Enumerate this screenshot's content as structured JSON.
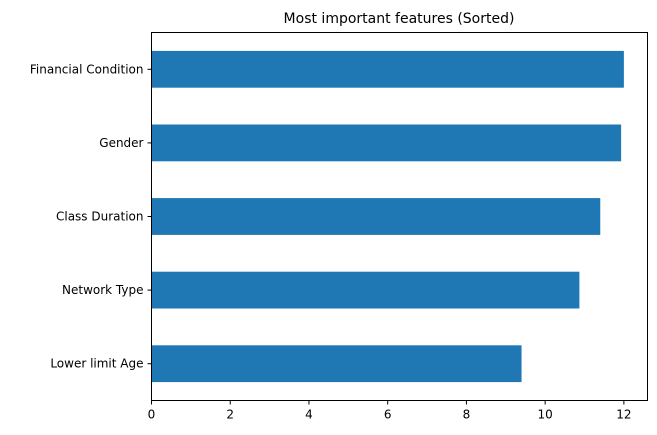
{
  "chart_data": {
    "type": "bar",
    "orientation": "horizontal",
    "title": "Most important features (Sorted)",
    "xlabel": "",
    "ylabel": "",
    "categories": [
      "Financial Condition",
      "Gender",
      "Class Duration",
      "Network Type",
      "Lower limit Age"
    ],
    "values": [
      12.0,
      11.93,
      11.4,
      10.87,
      9.4
    ],
    "xlim": [
      0,
      12.6
    ],
    "xticks": [
      "0",
      "2",
      "4",
      "6",
      "8",
      "10",
      "12"
    ],
    "grid": false,
    "legend": "none",
    "bar_color": "#1f77b4"
  }
}
